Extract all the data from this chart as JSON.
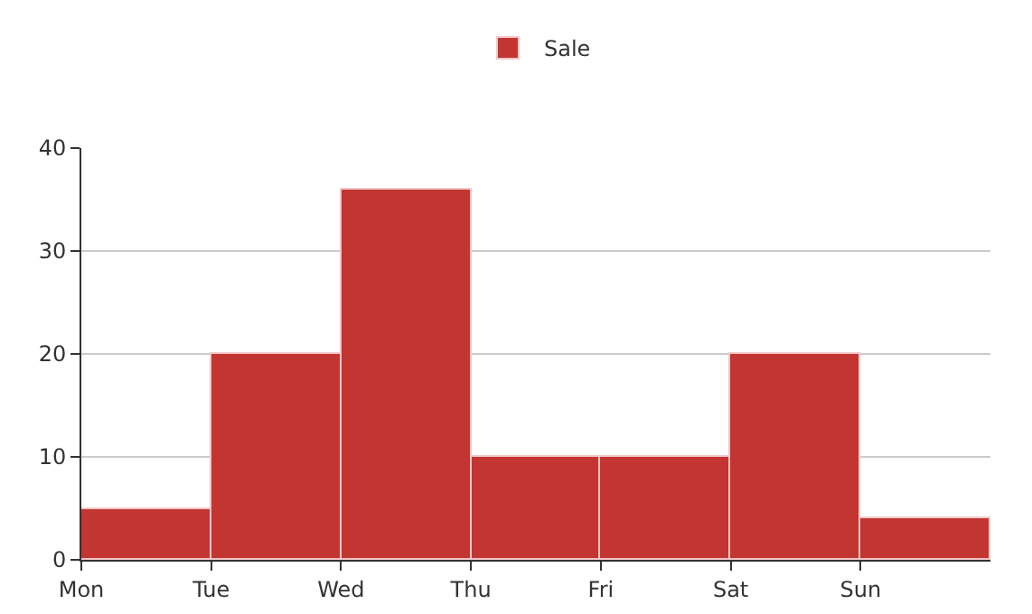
{
  "chart_data": {
    "type": "bar",
    "categories": [
      "Mon",
      "Tue",
      "Wed",
      "Thu",
      "Fri",
      "Sat",
      "Sun"
    ],
    "series": [
      {
        "name": "Sale",
        "color": "#c23531",
        "values": [
          5,
          20,
          36,
          10,
          10,
          20,
          4
        ]
      }
    ],
    "ylim": [
      0,
      40
    ],
    "yticks": [
      0,
      10,
      20,
      30,
      40
    ],
    "grid": "y",
    "legend": "top"
  }
}
